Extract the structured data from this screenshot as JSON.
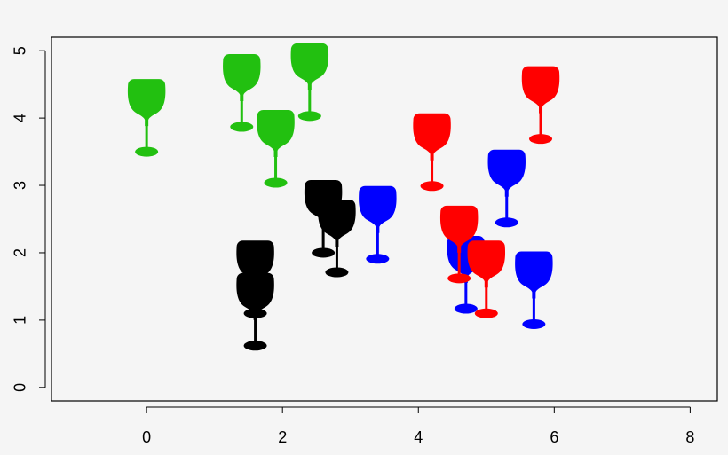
{
  "chart_data": {
    "type": "scatter",
    "marker": "wine-glass",
    "title": "",
    "xlabel": "",
    "ylabel": "",
    "xlim": [
      -1.4,
      8.4
    ],
    "ylim": [
      -0.2,
      5.2
    ],
    "xticks": [
      "0",
      "2",
      "4",
      "6",
      "8"
    ],
    "yticks": [
      "0",
      "1",
      "2",
      "3",
      "4",
      "5"
    ],
    "grid": false,
    "series": [
      {
        "color": "#22c010",
        "points": [
          {
            "x": 0.0,
            "y": 3.5
          },
          {
            "x": 1.4,
            "y": 3.87
          },
          {
            "x": 2.4,
            "y": 4.03
          },
          {
            "x": 1.9,
            "y": 3.04
          }
        ]
      },
      {
        "color": "#000000",
        "points": [
          {
            "x": 2.6,
            "y": 2.0
          },
          {
            "x": 2.8,
            "y": 1.71
          },
          {
            "x": 1.6,
            "y": 0.62
          },
          {
            "x": 1.6,
            "y": 1.1
          }
        ]
      },
      {
        "color": "#0000ff",
        "points": [
          {
            "x": 3.4,
            "y": 1.91
          },
          {
            "x": 5.3,
            "y": 2.45
          },
          {
            "x": 4.7,
            "y": 1.17
          },
          {
            "x": 5.7,
            "y": 0.94
          }
        ]
      },
      {
        "color": "#ff0000",
        "points": [
          {
            "x": 4.2,
            "y": 2.99
          },
          {
            "x": 5.8,
            "y": 3.69
          },
          {
            "x": 4.6,
            "y": 1.62
          },
          {
            "x": 5.0,
            "y": 1.1
          }
        ]
      }
    ]
  }
}
